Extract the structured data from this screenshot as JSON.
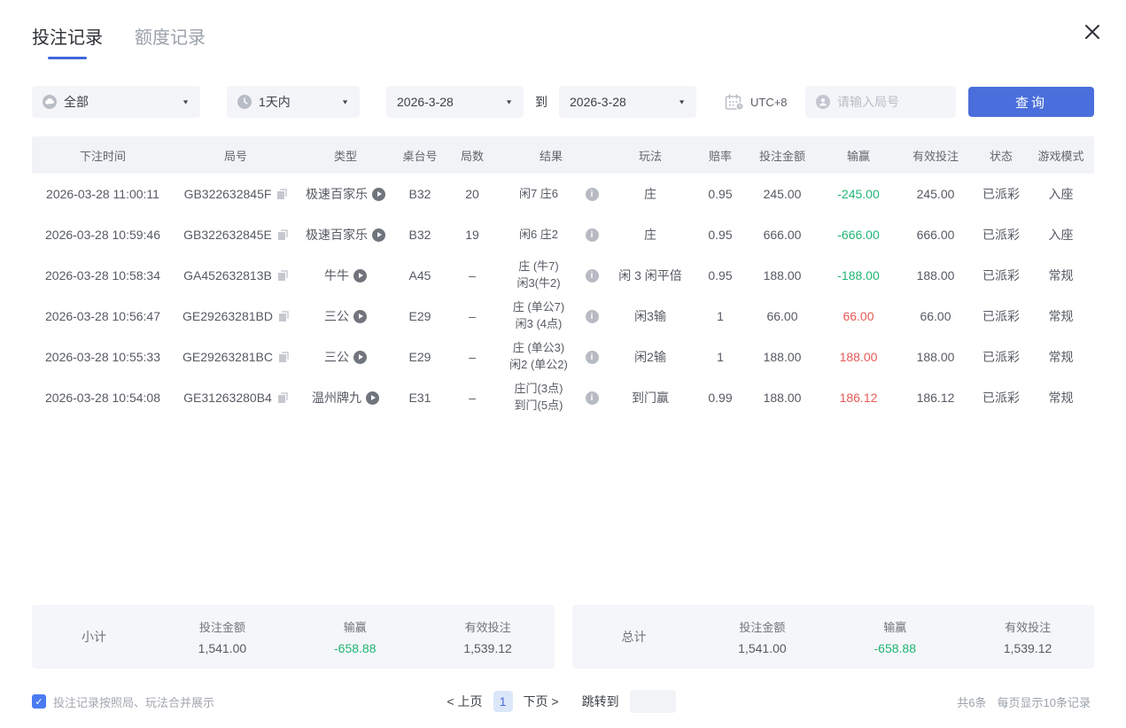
{
  "tabs": [
    {
      "label": "投注记录",
      "active": true
    },
    {
      "label": "额度记录",
      "active": false
    }
  ],
  "filters": {
    "category": "全部",
    "time_range": "1天内",
    "date_from": "2026-3-28",
    "to_label": "到",
    "date_to": "2026-3-28",
    "timezone": "UTC+8",
    "search_placeholder": "请输入局号",
    "query_button": "查询"
  },
  "table": {
    "headers": [
      "下注时间",
      "局号",
      "类型",
      "桌台号",
      "局数",
      "结果",
      "玩法",
      "赔率",
      "投注金额",
      "输赢",
      "有效投注",
      "状态",
      "游戏模式"
    ],
    "rows": [
      {
        "time": "2026-03-28 11:00:11",
        "round_id": "GB322632845F",
        "type": "极速百家乐",
        "table_no": "B32",
        "round": "20",
        "result": [
          "闲7 庄6"
        ],
        "play": "庄",
        "odds": "0.95",
        "bet": "245.00",
        "win_loss": "-245.00",
        "win_loss_color": "green",
        "valid_bet": "245.00",
        "status": "已派彩",
        "mode": "入座"
      },
      {
        "time": "2026-03-28 10:59:46",
        "round_id": "GB322632845E",
        "type": "极速百家乐",
        "table_no": "B32",
        "round": "19",
        "result": [
          "闲6 庄2"
        ],
        "play": "庄",
        "odds": "0.95",
        "bet": "666.00",
        "win_loss": "-666.00",
        "win_loss_color": "green",
        "valid_bet": "666.00",
        "status": "已派彩",
        "mode": "入座"
      },
      {
        "time": "2026-03-28 10:58:34",
        "round_id": "GA452632813B",
        "type": "牛牛",
        "table_no": "A45",
        "round": "–",
        "result": [
          "庄 (牛7)",
          "闲3(牛2)"
        ],
        "play": "闲 3 闲平倍",
        "odds": "0.95",
        "bet": "188.00",
        "win_loss": "-188.00",
        "win_loss_color": "green",
        "valid_bet": "188.00",
        "status": "已派彩",
        "mode": "常规"
      },
      {
        "time": "2026-03-28 10:56:47",
        "round_id": "GE29263281BD",
        "type": "三公",
        "table_no": "E29",
        "round": "–",
        "result": [
          "庄 (单公7)",
          "闲3 (4点)"
        ],
        "play": "闲3输",
        "odds": "1",
        "bet": "66.00",
        "win_loss": "66.00",
        "win_loss_color": "red",
        "valid_bet": "66.00",
        "status": "已派彩",
        "mode": "常规"
      },
      {
        "time": "2026-03-28 10:55:33",
        "round_id": "GE29263281BC",
        "type": "三公",
        "table_no": "E29",
        "round": "–",
        "result": [
          "庄 (单公3)",
          "闲2 (单公2)"
        ],
        "play": "闲2输",
        "odds": "1",
        "bet": "188.00",
        "win_loss": "188.00",
        "win_loss_color": "red",
        "valid_bet": "188.00",
        "status": "已派彩",
        "mode": "常规"
      },
      {
        "time": "2026-03-28 10:54:08",
        "round_id": "GE31263280B4",
        "type": "温州牌九",
        "table_no": "E31",
        "round": "–",
        "result": [
          "庄门(3点)",
          "到门(5点)"
        ],
        "play": "到门赢",
        "odds": "0.99",
        "bet": "188.00",
        "win_loss": "186.12",
        "win_loss_color": "red",
        "valid_bet": "186.12",
        "status": "已派彩",
        "mode": "常规"
      }
    ]
  },
  "summary": {
    "subtotal": {
      "label": "小计",
      "bet_label": "投注金额",
      "bet": "1,541.00",
      "win_label": "输赢",
      "win": "-658.88",
      "valid_label": "有效投注",
      "valid": "1,539.12"
    },
    "total": {
      "label": "总计",
      "bet_label": "投注金额",
      "bet": "1,541.00",
      "win_label": "输赢",
      "win": "-658.88",
      "valid_label": "有效投注",
      "valid": "1,539.12"
    }
  },
  "footer": {
    "merge_label": "投注记录按照局、玩法合并展示",
    "merge_checked": true,
    "checkmark": "✓",
    "pagination": {
      "prev": "< 上页",
      "current": "1",
      "next": "下页 >",
      "jump_label": "跳转到"
    },
    "record_count": "共6条",
    "page_size": "每页显示10条记录"
  },
  "colors": {
    "accent_blue": "#4a6edb",
    "green": "#21b573",
    "red": "#e65a55"
  }
}
